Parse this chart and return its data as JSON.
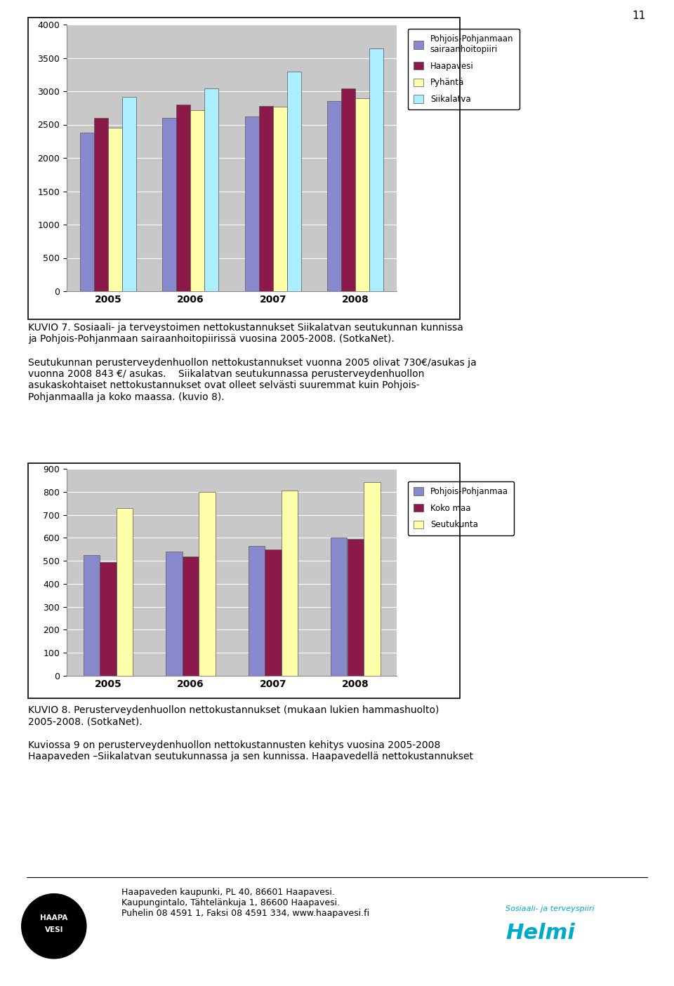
{
  "chart1": {
    "years": [
      "2005",
      "2006",
      "2007",
      "2008"
    ],
    "series": [
      {
        "label": "Pohjois-Pohjanmaan\nsairaanhoitopiiri",
        "values": [
          2380,
          2600,
          2620,
          2850
        ],
        "color": "#8888cc"
      },
      {
        "label": "Haapavesi",
        "values": [
          2600,
          2800,
          2780,
          3040
        ],
        "color": "#8b1a4a"
      },
      {
        "label": "Pyhäntä",
        "values": [
          2450,
          2720,
          2770,
          2900
        ],
        "color": "#ffffaa"
      },
      {
        "label": "Siikalatva",
        "values": [
          2920,
          3040,
          3300,
          3640
        ],
        "color": "#aaeeff"
      }
    ],
    "ylim": [
      0,
      4000
    ],
    "yticks": [
      0,
      500,
      1000,
      1500,
      2000,
      2500,
      3000,
      3500,
      4000
    ],
    "plot_bg": "#c8c8c8"
  },
  "chart2": {
    "years": [
      "2005",
      "2006",
      "2007",
      "2008"
    ],
    "series": [
      {
        "label": "Pohjois-Pohjanmaa",
        "values": [
          525,
          540,
          565,
          600
        ],
        "color": "#8888cc"
      },
      {
        "label": "Koko maa",
        "values": [
          495,
          520,
          550,
          595
        ],
        "color": "#8b1a4a"
      },
      {
        "label": "Seutukunta",
        "values": [
          730,
          800,
          805,
          843
        ],
        "color": "#ffffaa"
      }
    ],
    "ylim": [
      0,
      900
    ],
    "yticks": [
      0,
      100,
      200,
      300,
      400,
      500,
      600,
      700,
      800,
      900
    ],
    "plot_bg": "#c8c8c8"
  },
  "page_number": "11",
  "kuvio7_caption": "KUVIO 7. Sosiaali- ja terveystoimen nettokustannukset Siikalatvan seutukunnan kunnissa\nja Pohjois-Pohjanmaan sairaanhoitopiirissä vuosina 2005-2008. (SotkaNet).",
  "body_text1": "Seutukunnan perusterveydenhuollon nettokustannukset vuonna 2005 olivat 730€/asukas ja\nvuonna 2008 843 €/ asukas.    Siikalatvan seutukunnassa perusterveydenhuollon\nasukaskohtaiset nettokustannukset ovat olleet selvästi suuremmat kuin Pohjois-\nPohjanmaalla ja koko maassa. (kuvio 8).",
  "kuvio8_caption": "KUVIO 8. Perusterveydenhuollon nettokustannukset (mukaan lukien hammashuolto)\n2005-2008. (SotkaNet).",
  "body_text2": "Kuviossa 9 on perusterveydenhuollon nettokustannusten kehitys vuosina 2005-2008\nHaapaveden –Siikalatvan seutukunnassa ja sen kunnissa. Haapavedellä nettokustannukset",
  "footer_line1": "Haapaveden kaupunki, PL 40, 86601 Haapavesi.",
  "footer_line2": "Kaupungintalo, Tähtelänkuja 1, 86600 Haapavesi.",
  "footer_line3": "Puhelin 08 4591 1, Faksi 08 4591 334, www.haapavesi.fi"
}
